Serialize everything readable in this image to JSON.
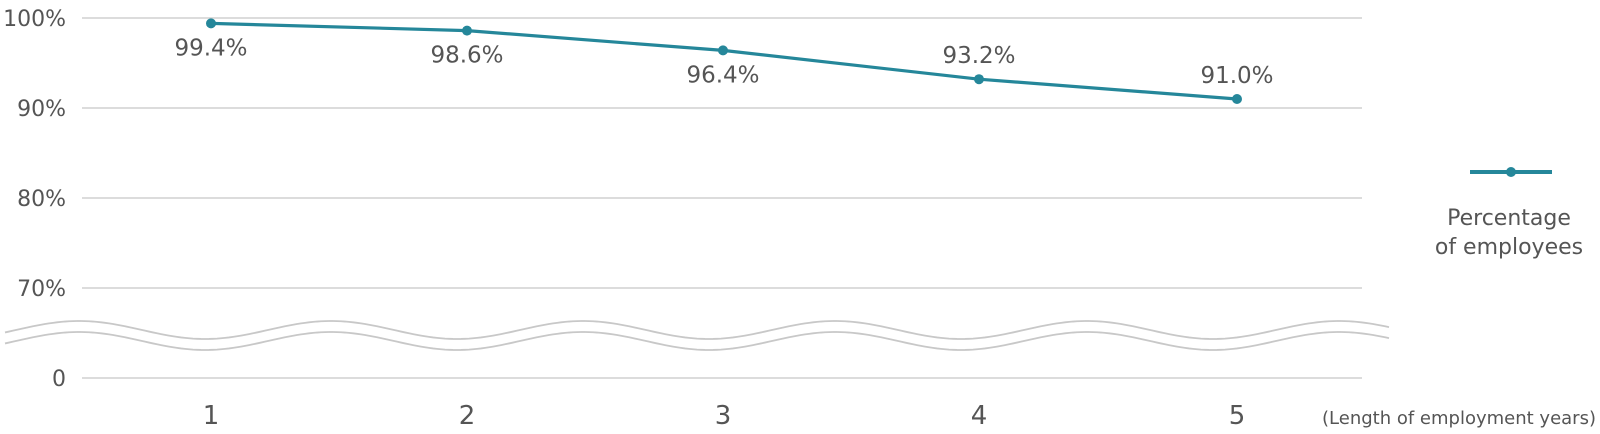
{
  "chart_data": {
    "type": "line",
    "x": [
      1,
      2,
      3,
      4,
      5
    ],
    "categories": [
      "1",
      "2",
      "3",
      "4",
      "5"
    ],
    "series": [
      {
        "name": "Percentage of employees",
        "values": [
          99.4,
          98.6,
          96.4,
          93.2,
          91.0
        ],
        "labels": [
          "99.4%",
          "98.6%",
          "96.4%",
          "93.2%",
          "91.0%"
        ],
        "color": "#25879a"
      }
    ],
    "y_ticks": [
      {
        "value": 100,
        "label": "100%"
      },
      {
        "value": 90,
        "label": "90%"
      },
      {
        "value": 80,
        "label": "80%"
      },
      {
        "value": 70,
        "label": "70%"
      },
      {
        "value": 0,
        "label": "0"
      }
    ],
    "axis_break": true,
    "ylim": [
      0,
      100
    ],
    "xlabel": "(Length of employment years)",
    "legend": {
      "lines": [
        "Percentage",
        "of employees"
      ],
      "placement": "right"
    },
    "grid": true,
    "grid_color": "#d0d0d0",
    "break_color": "#c8c8c8"
  }
}
